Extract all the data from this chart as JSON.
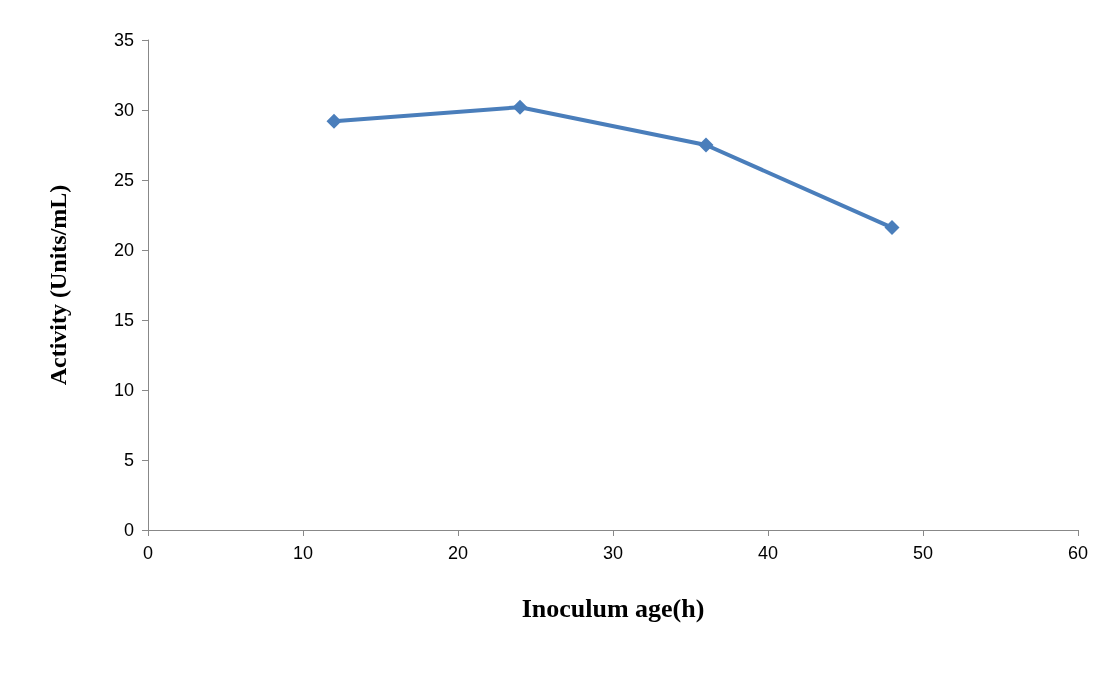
{
  "chart_data": {
    "type": "line",
    "xlabel": "Inoculum age(h)",
    "ylabel": "Activity (Units/mL)",
    "x": [
      12,
      24,
      36,
      48
    ],
    "series": [
      {
        "color": "#4a7ebb",
        "values": [
          29.2,
          30.2,
          27.5,
          21.6
        ]
      }
    ],
    "xlim": [
      0,
      60
    ],
    "xticks": [
      0,
      10,
      20,
      30,
      40,
      50,
      60
    ],
    "ylim": [
      0,
      35
    ],
    "yticks": [
      0,
      5,
      10,
      15,
      20,
      25,
      30,
      35
    ],
    "grid": false,
    "marker": "diamond",
    "line_style": "solid"
  }
}
